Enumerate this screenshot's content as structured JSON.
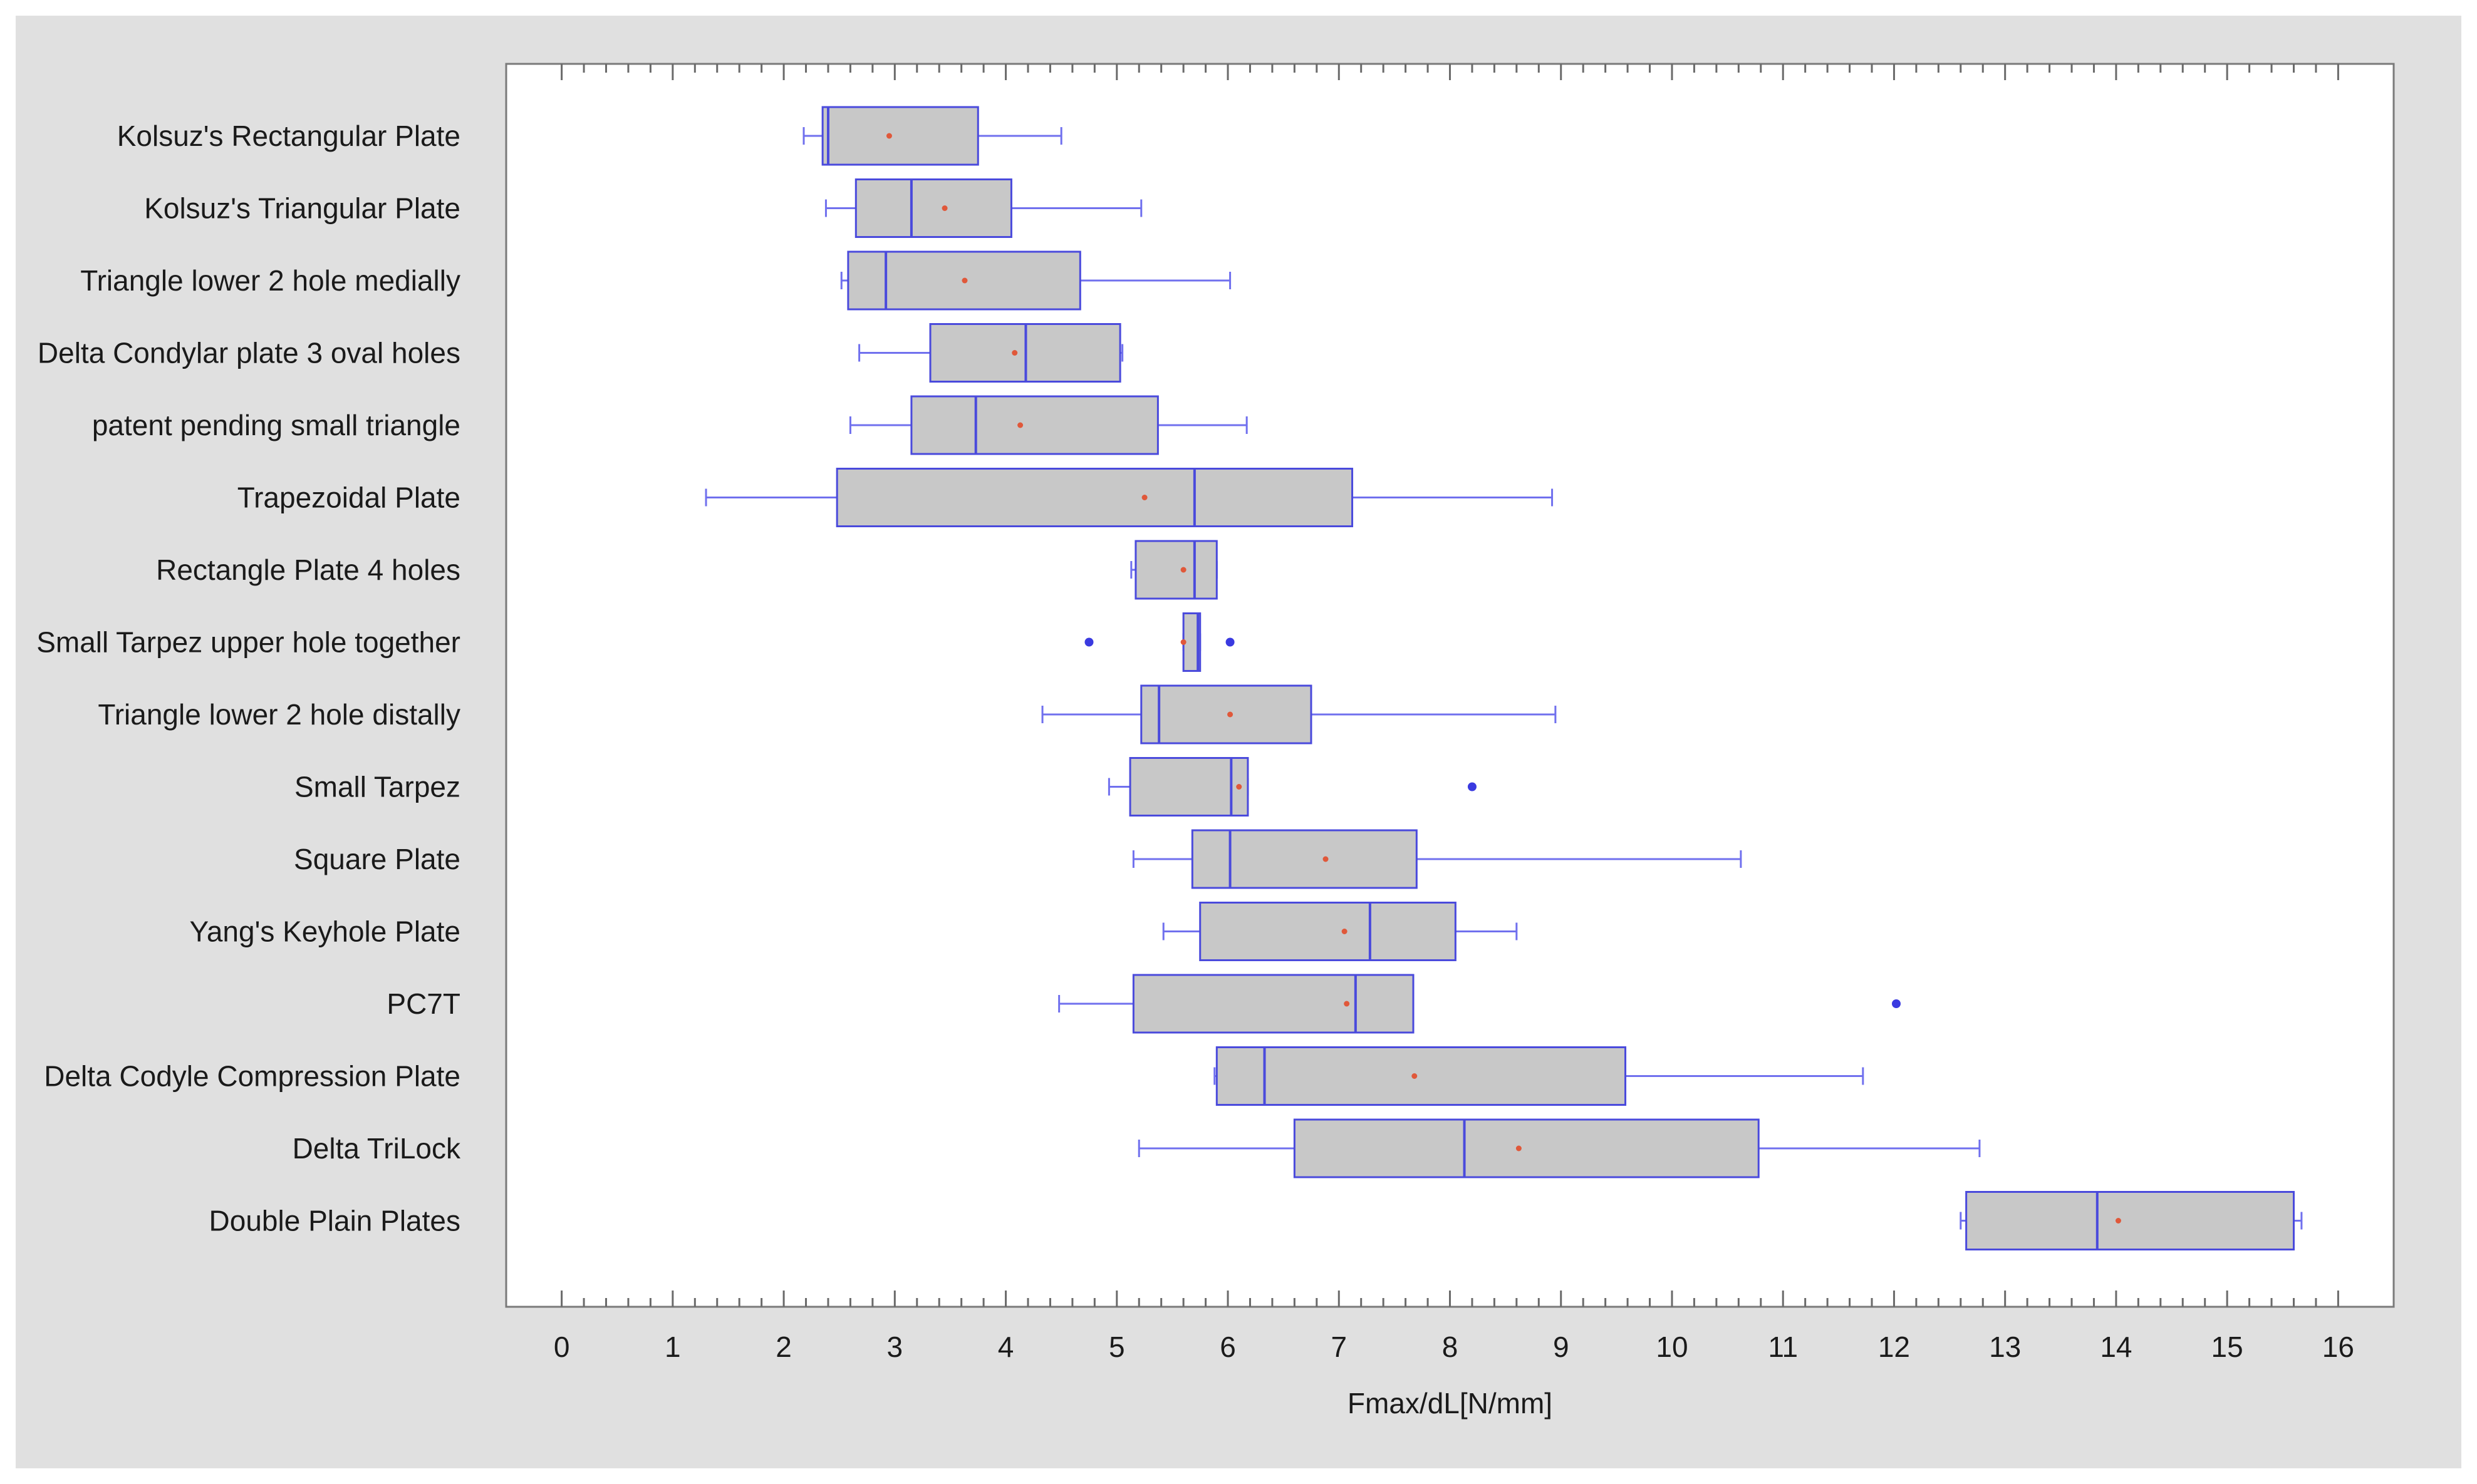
{
  "chart_data": {
    "type": "boxplot",
    "title": "",
    "xlabel": "Fmax/dL[N/mm]",
    "ylabel": "",
    "xlim": [
      -0.5,
      16.5
    ],
    "xticks": [
      0,
      1,
      2,
      3,
      4,
      5,
      6,
      7,
      8,
      9,
      10,
      11,
      12,
      13,
      14,
      15,
      16
    ],
    "grid": false,
    "orientation": "horizontal",
    "colors": {
      "box_fill": "#c8c8c8",
      "box_edge": "#4a4adc",
      "whisker": "#7070ee",
      "mean_marker": "#e0583a",
      "outlier": "#3a3ae0",
      "plot_bg": "#ffffff",
      "frame_bg": "#e0e0e0"
    },
    "series": [
      {
        "label": "Kolsuz's Rectangular Plate",
        "min": 2.18,
        "q1": 2.35,
        "median": 2.4,
        "q3": 3.75,
        "max": 4.5,
        "mean": 2.95,
        "outliers": []
      },
      {
        "label": "Kolsuz's Triangular Plate",
        "min": 2.38,
        "q1": 2.65,
        "median": 3.15,
        "q3": 4.05,
        "max": 5.22,
        "mean": 3.45,
        "outliers": []
      },
      {
        "label": "Triangle lower 2 hole medially",
        "min": 2.52,
        "q1": 2.58,
        "median": 2.92,
        "q3": 4.67,
        "max": 6.02,
        "mean": 3.63,
        "outliers": []
      },
      {
        "label": "Delta Condylar plate 3 oval holes",
        "min": 2.68,
        "q1": 3.32,
        "median": 4.18,
        "q3": 5.03,
        "max": 5.05,
        "mean": 4.08,
        "outliers": []
      },
      {
        "label": "patent pending small triangle",
        "min": 2.6,
        "q1": 3.15,
        "median": 3.73,
        "q3": 5.37,
        "max": 6.17,
        "mean": 4.13,
        "outliers": []
      },
      {
        "label": "Trapezoidal Plate",
        "min": 1.3,
        "q1": 2.48,
        "median": 5.7,
        "q3": 7.12,
        "max": 8.92,
        "mean": 5.25,
        "outliers": []
      },
      {
        "label": "Rectangle Plate 4 holes",
        "min": 5.13,
        "q1": 5.17,
        "median": 5.7,
        "q3": 5.9,
        "max": 5.9,
        "mean": 5.6,
        "outliers": []
      },
      {
        "label": "Small Tarpez upper hole together",
        "min": 5.6,
        "q1": 5.6,
        "median": 5.73,
        "q3": 5.75,
        "max": 5.75,
        "mean": 5.6,
        "outliers": [
          4.75,
          6.02
        ]
      },
      {
        "label": "Triangle lower 2 hole distally",
        "min": 4.33,
        "q1": 5.22,
        "median": 5.38,
        "q3": 6.75,
        "max": 8.95,
        "mean": 6.02,
        "outliers": []
      },
      {
        "label": "Small Tarpez",
        "min": 4.93,
        "q1": 5.12,
        "median": 6.03,
        "q3": 6.18,
        "max": 6.18,
        "mean": 6.1,
        "outliers": [
          8.2
        ]
      },
      {
        "label": "Square Plate",
        "min": 5.15,
        "q1": 5.68,
        "median": 6.02,
        "q3": 7.7,
        "max": 10.62,
        "mean": 6.88,
        "outliers": []
      },
      {
        "label": "Yang's Keyhole Plate",
        "min": 5.42,
        "q1": 5.75,
        "median": 7.28,
        "q3": 8.05,
        "max": 8.6,
        "mean": 7.05,
        "outliers": []
      },
      {
        "label": "PC7T",
        "min": 4.48,
        "q1": 5.15,
        "median": 7.15,
        "q3": 7.67,
        "max": 7.67,
        "mean": 7.07,
        "outliers": [
          12.02
        ]
      },
      {
        "label": "Delta Codyle Compression Plate",
        "min": 5.88,
        "q1": 5.9,
        "median": 6.33,
        "q3": 9.58,
        "max": 11.72,
        "mean": 7.68,
        "outliers": []
      },
      {
        "label": "Delta TriLock",
        "min": 5.2,
        "q1": 6.6,
        "median": 8.13,
        "q3": 10.78,
        "max": 12.77,
        "mean": 8.62,
        "outliers": []
      },
      {
        "label": "Double Plain Plates",
        "min": 12.6,
        "q1": 12.65,
        "median": 13.83,
        "q3": 15.6,
        "max": 15.67,
        "mean": 14.02,
        "outliers": []
      }
    ]
  }
}
